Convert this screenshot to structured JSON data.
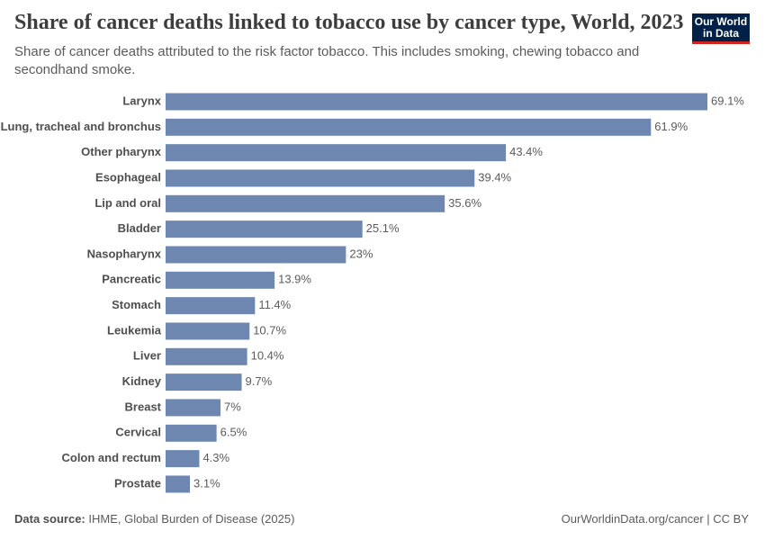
{
  "chart_data": {
    "type": "bar",
    "orientation": "horizontal",
    "title": "Share of cancer deaths linked to tobacco use by cancer type, World, 2023",
    "subtitle": "Share of cancer deaths attributed to the risk factor tobacco. This includes smoking, chewing tobacco and secondhand smoke.",
    "logo": "Our World in Data",
    "source_label": "Data source:",
    "source": "IHME, Global Burden of Disease (2025)",
    "url": "OurWorldinData.org/cancer | CC BY",
    "categories": [
      "Larynx",
      "Lung, tracheal and bronchus",
      "Other pharynx",
      "Esophageal",
      "Lip and oral",
      "Bladder",
      "Nasopharynx",
      "Pancreatic",
      "Stomach",
      "Leukemia",
      "Liver",
      "Kidney",
      "Breast",
      "Cervical",
      "Colon and rectum",
      "Prostate"
    ],
    "values": [
      69.1,
      61.9,
      43.4,
      39.4,
      35.6,
      25.1,
      23,
      13.9,
      11.4,
      10.7,
      10.4,
      9.7,
      7,
      6.5,
      4.3,
      3.1
    ],
    "value_labels": [
      "69.1%",
      "61.9%",
      "43.4%",
      "39.4%",
      "35.6%",
      "25.1%",
      "23%",
      "13.9%",
      "11.4%",
      "10.7%",
      "10.4%",
      "9.7%",
      "7%",
      "6.5%",
      "4.3%",
      "3.1%"
    ],
    "color": "#6d87b0"
  }
}
